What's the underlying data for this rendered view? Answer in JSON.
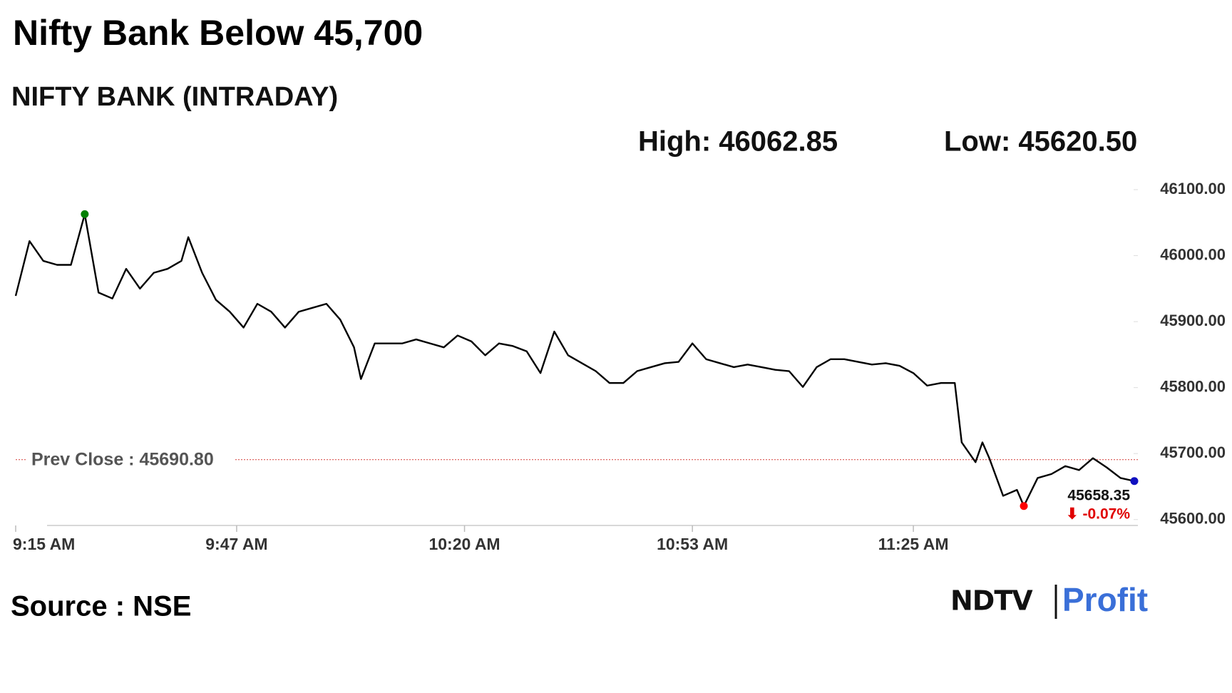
{
  "chart_data": {
    "type": "line",
    "title": "Nifty Bank Below 45,700",
    "subtitle": "NIFTY BANK (INTRADAY)",
    "high_label": "High: 46062.85",
    "low_label": "Low: 45620.50",
    "source": "Source : NSE",
    "logo": [
      "NDTV",
      "Profit"
    ],
    "prev_close": 45690.8,
    "prev_close_label": "Prev Close : 45690.80",
    "prev_close_color": "#d9534f",
    "last_label": "45658.35",
    "change_label": "⬇ -0.07%",
    "change_color": "#e00000",
    "high_color": "#008000",
    "low_color": "#ff0000",
    "last_color": "#1010c0",
    "x": [
      "9:15 AM",
      "9:17 AM",
      "9:19 AM",
      "9:21 AM",
      "9:23 AM",
      "9:25 AM",
      "9:27 AM",
      "9:29 AM",
      "9:31 AM",
      "9:33 AM",
      "9:35 AM",
      "9:37 AM",
      "9:39 AM",
      "9:40 AM",
      "9:42 AM",
      "9:44 AM",
      "9:46 AM",
      "9:48 AM",
      "9:50 AM",
      "9:52 AM",
      "9:54 AM",
      "9:56 AM",
      "9:58 AM",
      "10:00 AM",
      "10:02 AM",
      "10:04 AM",
      "10:05 AM",
      "10:07 AM",
      "10:09 AM",
      "10:11 AM",
      "10:13 AM",
      "10:15 AM",
      "10:17 AM",
      "10:19 AM",
      "10:21 AM",
      "10:23 AM",
      "10:25 AM",
      "10:27 AM",
      "10:29 AM",
      "10:31 AM",
      "10:33 AM",
      "10:35 AM",
      "10:37 AM",
      "10:39 AM",
      "10:41 AM",
      "10:43 AM",
      "10:45 AM",
      "10:47 AM",
      "10:49 AM",
      "10:51 AM",
      "10:53 AM",
      "10:55 AM",
      "10:57 AM",
      "10:59 AM",
      "11:01 AM",
      "11:03 AM",
      "11:05 AM",
      "11:07 AM",
      "11:09 AM",
      "11:11 AM",
      "11:13 AM",
      "11:15 AM",
      "11:17 AM",
      "11:19 AM",
      "11:21 AM",
      "11:23 AM",
      "11:25 AM",
      "11:27 AM",
      "11:29 AM",
      "11:31 AM",
      "11:32 AM",
      "11:34 AM",
      "11:35 AM",
      "11:36 AM",
      "11:38 AM",
      "11:40 AM",
      "11:41 AM",
      "11:43 AM",
      "11:45 AM",
      "11:47 AM",
      "11:49 AM",
      "11:51 AM",
      "11:53 AM",
      "11:55 AM",
      "11:57 AM"
    ],
    "series": [
      {
        "name": "NIFTY BANK",
        "color": "#000000",
        "values": [
          45939,
          46022,
          45992,
          45986,
          45986,
          46062.85,
          45944,
          45935,
          45980,
          45950,
          45974,
          45980,
          45992,
          46028,
          45974,
          45933,
          45915,
          45891,
          45927,
          45915,
          45891,
          45915,
          45921,
          45927,
          45903,
          45861,
          45813,
          45867,
          45867,
          45867,
          45873,
          45867,
          45861,
          45879,
          45870,
          45849,
          45867,
          45863,
          45855,
          45822,
          45885,
          45849,
          45837,
          45825,
          45807,
          45807,
          45825,
          45831,
          45837,
          45839,
          45867,
          45843,
          45837,
          45831,
          45835,
          45831,
          45827,
          45825,
          45801,
          45831,
          45843,
          45843,
          45839,
          45835,
          45837,
          45833,
          45822,
          45803,
          45807,
          45807,
          45717,
          45687,
          45717,
          45693,
          45636,
          45645,
          45620.5,
          45663,
          45669,
          45681,
          45675,
          45693,
          45679,
          45663,
          45658.35
        ]
      }
    ],
    "xlim": [
      "9:15 AM",
      "11:57 AM"
    ],
    "xticks": [
      "9:15 AM",
      "9:47 AM",
      "10:20 AM",
      "10:53 AM",
      "11:25 AM"
    ],
    "ylim": [
      45590,
      46120
    ],
    "yticks": [
      {
        "value": 45600,
        "label": "45600.00"
      },
      {
        "value": 45700,
        "label": "45700.00"
      },
      {
        "value": 45800,
        "label": "45800.00"
      },
      {
        "value": 45900,
        "label": "45900.00"
      },
      {
        "value": 46000,
        "label": "46000.00"
      },
      {
        "value": 46100,
        "label": "46100.00"
      }
    ]
  }
}
